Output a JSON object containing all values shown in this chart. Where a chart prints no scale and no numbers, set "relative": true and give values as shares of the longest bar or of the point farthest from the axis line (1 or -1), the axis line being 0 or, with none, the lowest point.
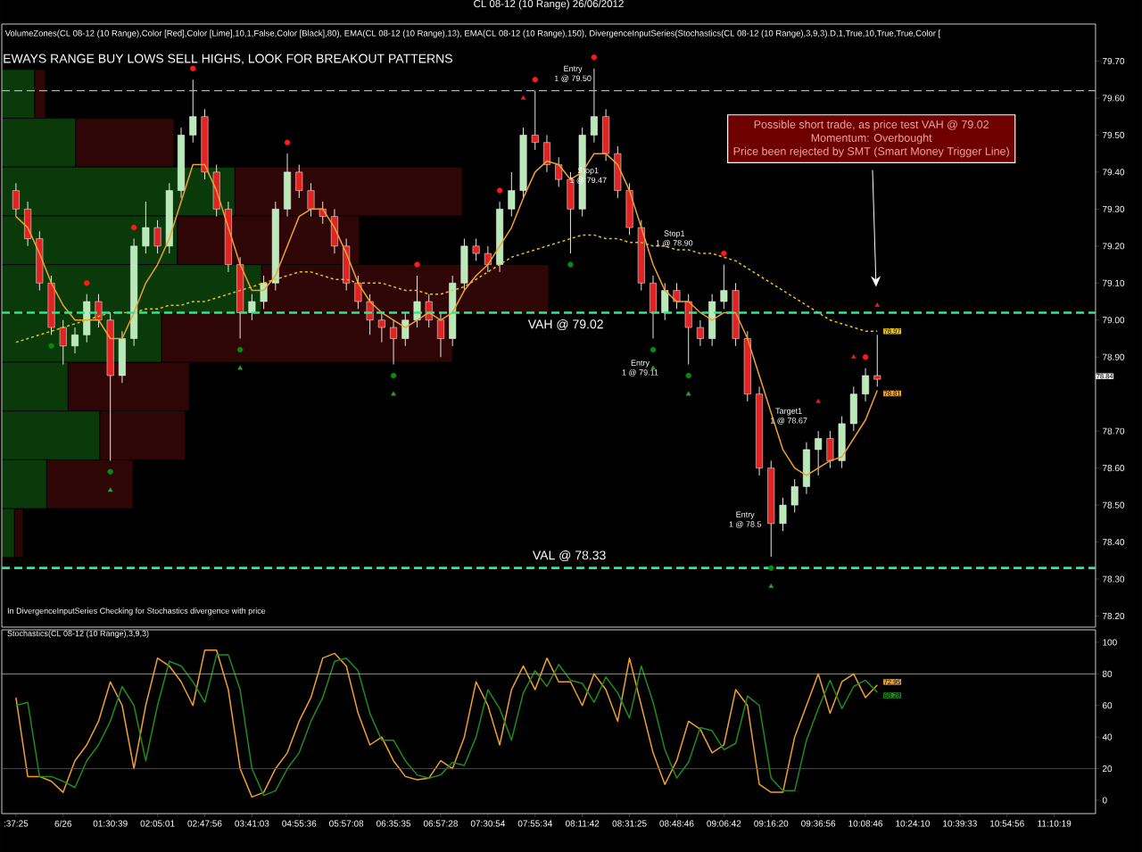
{
  "chart_data": [
    {
      "type": "candlestick",
      "title": "CL 08-12 (10 Range)  26/06/2012",
      "categories": [
        null,
        null,
        null,
        null,
        null,
        null,
        null,
        null,
        null,
        null,
        null,
        null,
        null,
        null,
        null,
        null,
        null,
        null,
        null,
        null,
        null,
        null,
        null,
        null,
        null,
        null,
        null,
        null,
        null,
        null,
        null,
        null,
        null,
        null,
        null,
        null,
        null,
        null,
        null,
        null,
        null,
        null,
        null,
        null,
        null,
        null,
        null,
        null,
        null,
        null,
        null,
        null,
        null,
        null,
        null,
        null,
        null,
        null,
        null,
        null,
        null,
        null,
        null,
        null,
        null,
        null,
        null,
        null,
        null,
        null,
        null,
        null,
        null,
        null,
        null,
        null,
        null,
        null,
        null,
        null,
        null,
        null,
        null,
        null,
        null,
        null,
        null,
        null,
        null
      ],
      "ohlc": [
        [
          79.35,
          79.37,
          79.28,
          79.3
        ],
        [
          79.3,
          79.32,
          79.2,
          79.22
        ],
        [
          79.22,
          79.24,
          79.08,
          79.1
        ],
        [
          79.1,
          79.12,
          78.96,
          78.98
        ],
        [
          78.98,
          79.0,
          78.88,
          78.93
        ],
        [
          78.93,
          78.98,
          78.91,
          78.96
        ],
        [
          78.96,
          79.07,
          78.94,
          79.05
        ],
        [
          79.05,
          79.07,
          78.98,
          79.0
        ],
        [
          79.0,
          79.02,
          78.62,
          78.85
        ],
        [
          78.85,
          78.97,
          78.83,
          78.95
        ],
        [
          78.95,
          79.22,
          78.93,
          79.2
        ],
        [
          79.2,
          79.32,
          79.18,
          79.25
        ],
        [
          79.25,
          79.27,
          79.18,
          79.2
        ],
        [
          79.2,
          79.37,
          79.18,
          79.35
        ],
        [
          79.35,
          79.52,
          79.33,
          79.5
        ],
        [
          79.5,
          79.65,
          79.48,
          79.55
        ],
        [
          79.55,
          79.57,
          79.38,
          79.4
        ],
        [
          79.4,
          79.42,
          79.28,
          79.3
        ],
        [
          79.3,
          79.32,
          79.13,
          79.15
        ],
        [
          79.15,
          79.17,
          78.95,
          79.02
        ],
        [
          79.02,
          79.07,
          79.0,
          79.05
        ],
        [
          79.05,
          79.12,
          79.03,
          79.1
        ],
        [
          79.1,
          79.32,
          79.08,
          79.3
        ],
        [
          79.3,
          79.45,
          79.28,
          79.4
        ],
        [
          79.4,
          79.42,
          79.33,
          79.35
        ],
        [
          79.35,
          79.37,
          79.28,
          79.3
        ],
        [
          79.3,
          79.32,
          79.26,
          79.28
        ],
        [
          79.28,
          79.3,
          79.18,
          79.2
        ],
        [
          79.2,
          79.22,
          79.08,
          79.1
        ],
        [
          79.1,
          79.12,
          79.03,
          79.05
        ],
        [
          79.05,
          79.07,
          78.96,
          79.0
        ],
        [
          79.0,
          79.02,
          78.94,
          78.98
        ],
        [
          78.98,
          79.0,
          78.88,
          78.95
        ],
        [
          78.95,
          79.02,
          78.93,
          79.0
        ],
        [
          79.0,
          79.12,
          78.98,
          79.05
        ],
        [
          79.05,
          79.07,
          78.98,
          79.0
        ],
        [
          79.0,
          79.02,
          78.9,
          78.95
        ],
        [
          78.95,
          79.12,
          78.93,
          79.1
        ],
        [
          79.1,
          79.22,
          79.08,
          79.2
        ],
        [
          79.2,
          79.22,
          79.16,
          79.18
        ],
        [
          79.18,
          79.2,
          79.13,
          79.15
        ],
        [
          79.15,
          79.32,
          79.13,
          79.3
        ],
        [
          79.3,
          79.4,
          79.28,
          79.35
        ],
        [
          79.35,
          79.52,
          79.33,
          79.5
        ],
        [
          79.5,
          79.62,
          79.46,
          79.48
        ],
        [
          79.48,
          79.5,
          79.4,
          79.42
        ],
        [
          79.42,
          79.44,
          79.36,
          79.38
        ],
        [
          79.38,
          79.4,
          79.18,
          79.3
        ],
        [
          79.3,
          79.52,
          79.28,
          79.5
        ],
        [
          79.5,
          79.68,
          79.48,
          79.55
        ],
        [
          79.55,
          79.57,
          79.43,
          79.45
        ],
        [
          79.45,
          79.47,
          79.33,
          79.35
        ],
        [
          79.35,
          79.37,
          79.23,
          79.25
        ],
        [
          79.25,
          79.27,
          79.08,
          79.1
        ],
        [
          79.1,
          79.12,
          78.95,
          79.02
        ],
        [
          79.02,
          79.1,
          79.0,
          79.08
        ],
        [
          79.08,
          79.1,
          79.03,
          79.05
        ],
        [
          79.05,
          79.07,
          78.88,
          78.98
        ],
        [
          78.98,
          79.0,
          78.93,
          78.95
        ],
        [
          78.95,
          79.07,
          78.93,
          79.05
        ],
        [
          79.05,
          79.15,
          79.03,
          79.08
        ],
        [
          79.08,
          79.1,
          78.93,
          78.95
        ],
        [
          78.95,
          78.97,
          78.78,
          78.8
        ],
        [
          78.8,
          78.82,
          78.58,
          78.6
        ],
        [
          78.6,
          78.62,
          78.36,
          78.45
        ],
        [
          78.45,
          78.52,
          78.43,
          78.5
        ],
        [
          78.5,
          78.57,
          78.48,
          78.55
        ],
        [
          78.55,
          78.67,
          78.53,
          78.65
        ],
        [
          78.65,
          78.7,
          78.58,
          78.68
        ],
        [
          78.68,
          78.7,
          78.6,
          78.62
        ],
        [
          78.62,
          78.74,
          78.6,
          78.72
        ],
        [
          78.72,
          78.82,
          78.7,
          78.8
        ],
        [
          78.8,
          78.87,
          78.78,
          78.85
        ],
        [
          78.85,
          78.96,
          78.82,
          78.84
        ],
        null,
        null,
        null,
        null,
        null,
        null,
        null,
        null,
        null,
        null,
        null,
        null,
        null,
        null,
        null
      ],
      "colors": [
        "#e02424",
        "#e02424",
        "#e02424",
        "#e02424",
        "#e02424",
        "#b8eab8",
        "#b8eab8",
        "#e02424",
        "#e02424",
        "#b8eab8",
        "#b8eab8",
        "#b8eab8",
        "#e02424",
        "#b8eab8",
        "#b8eab8",
        "#b8eab8",
        "#e02424",
        "#e02424",
        "#e02424",
        "#e02424",
        "#b8eab8",
        "#b8eab8",
        "#b8eab8",
        "#b8eab8",
        "#e02424",
        "#e02424",
        "#e02424",
        "#e02424",
        "#e02424",
        "#e02424",
        "#e02424",
        "#e02424",
        "#e02424",
        "#b8eab8",
        "#b8eab8",
        "#e02424",
        "#e02424",
        "#b8eab8",
        "#b8eab8",
        "#e02424",
        "#e02424",
        "#b8eab8",
        "#b8eab8",
        "#b8eab8",
        "#e02424",
        "#e02424",
        "#e02424",
        "#e02424",
        "#b8eab8",
        "#b8eab8",
        "#e02424",
        "#e02424",
        "#e02424",
        "#e02424",
        "#e02424",
        "#b8eab8",
        "#e02424",
        "#e02424",
        "#e02424",
        "#b8eab8",
        "#b8eab8",
        "#e02424",
        "#e02424",
        "#e02424",
        "#e02424",
        "#b8eab8",
        "#b8eab8",
        "#b8eab8",
        "#b8eab8",
        "#e02424",
        "#b8eab8",
        "#b8eab8",
        "#b8eab8",
        "#e02424",
        null,
        null,
        null,
        null,
        null,
        null,
        null,
        null,
        null,
        null,
        null,
        null,
        null,
        null,
        null
      ],
      "series": [
        {
          "type": "line",
          "color": "#f0a030",
          "line_style": "solid",
          "values": [
            79.28,
            79.25,
            79.18,
            79.1,
            79.04,
            79.0,
            79.0,
            79.0,
            78.95,
            78.95,
            79.02,
            79.1,
            79.15,
            79.22,
            79.32,
            79.42,
            79.42,
            79.35,
            79.25,
            79.15,
            79.08,
            79.08,
            79.12,
            79.2,
            79.28,
            79.3,
            79.3,
            79.25,
            79.18,
            79.1,
            79.05,
            79.02,
            79.0,
            78.98,
            79.0,
            79.02,
            79.0,
            79.02,
            79.08,
            79.12,
            79.15,
            79.2,
            79.25,
            79.33,
            79.4,
            79.43,
            79.42,
            79.38,
            79.4,
            79.45,
            79.45,
            79.42,
            79.35,
            79.25,
            79.15,
            79.08,
            79.05,
            79.05,
            79.02,
            79.0,
            79.02,
            79.02,
            78.95,
            78.85,
            78.75,
            78.65,
            78.6,
            78.58,
            78.6,
            78.62,
            78.63,
            78.68,
            78.73,
            78.81,
            null,
            null,
            null,
            null,
            null,
            null,
            null,
            null,
            null,
            null,
            null,
            null,
            null,
            null,
            null
          ],
          "value_labels": [
            null,
            null,
            null,
            null,
            null,
            null,
            null,
            null,
            null,
            null,
            null,
            null,
            null,
            null,
            null,
            null,
            null,
            null,
            null,
            null,
            null,
            null,
            null,
            null,
            null,
            null,
            null,
            null,
            null,
            null,
            null,
            null,
            null,
            null,
            null,
            null,
            null,
            null,
            null,
            null,
            null,
            null,
            null,
            null,
            null,
            null,
            null,
            null,
            null,
            null,
            null,
            null,
            null,
            null,
            null,
            null,
            null,
            null,
            null,
            null,
            null,
            null,
            null,
            null,
            null,
            null,
            null,
            null,
            null,
            null,
            null,
            null,
            null,
            "78.81",
            null,
            null,
            null,
            null,
            null,
            null,
            null,
            null,
            null,
            null,
            null,
            null,
            null,
            null,
            null
          ]
        },
        {
          "type": "line",
          "color": "#e8c020",
          "line_style": "dashed",
          "values": [
            78.94,
            78.95,
            78.96,
            78.97,
            78.98,
            78.99,
            79.0,
            79.01,
            79.02,
            79.02,
            79.02,
            79.03,
            79.03,
            79.04,
            79.04,
            79.05,
            79.05,
            79.06,
            79.07,
            79.08,
            79.09,
            79.1,
            79.11,
            79.12,
            79.13,
            79.13,
            79.12,
            79.11,
            79.11,
            79.1,
            79.1,
            79.1,
            79.09,
            79.08,
            79.08,
            79.07,
            79.07,
            79.08,
            79.09,
            79.11,
            79.13,
            79.15,
            79.17,
            79.18,
            79.19,
            79.2,
            79.21,
            79.22,
            79.23,
            79.23,
            79.22,
            79.22,
            79.21,
            79.21,
            79.2,
            79.2,
            79.19,
            79.19,
            79.18,
            79.18,
            79.17,
            79.16,
            79.14,
            79.12,
            79.1,
            79.08,
            79.06,
            79.04,
            79.02,
            79.0,
            78.99,
            78.98,
            78.97,
            78.97,
            null,
            null,
            null,
            null,
            null,
            null,
            null,
            null,
            null,
            null,
            null,
            null,
            null,
            null,
            null
          ],
          "value_labels": [
            null,
            null,
            null,
            null,
            null,
            null,
            null,
            null,
            null,
            null,
            null,
            null,
            null,
            null,
            null,
            null,
            null,
            null,
            null,
            null,
            null,
            null,
            null,
            null,
            null,
            null,
            null,
            null,
            null,
            null,
            null,
            null,
            null,
            null,
            null,
            null,
            null,
            null,
            null,
            null,
            null,
            null,
            null,
            null,
            null,
            null,
            null,
            null,
            null,
            null,
            null,
            null,
            null,
            null,
            null,
            null,
            null,
            null,
            null,
            null,
            null,
            null,
            null,
            null,
            null,
            null,
            null,
            null,
            null,
            null,
            null,
            null,
            null,
            "78.97",
            null,
            null,
            null,
            null,
            null,
            null,
            null,
            null,
            null,
            null,
            null,
            null,
            null,
            null,
            null
          ]
        },
        {
          "type": "scatter",
          "color": "#ff1a1a",
          "marker": "circle",
          "values": [
            null,
            null,
            null,
            null,
            null,
            null,
            79.1,
            null,
            null,
            null,
            79.25,
            null,
            null,
            null,
            null,
            79.68,
            null,
            null,
            null,
            null,
            null,
            null,
            null,
            79.48,
            null,
            null,
            null,
            null,
            null,
            null,
            null,
            null,
            null,
            null,
            79.15,
            null,
            null,
            null,
            null,
            null,
            null,
            79.35,
            null,
            null,
            79.65,
            null,
            null,
            null,
            null,
            79.71,
            null,
            null,
            null,
            null,
            null,
            null,
            null,
            null,
            null,
            null,
            79.18,
            null,
            null,
            null,
            null,
            null,
            null,
            null,
            null,
            null,
            null,
            null,
            78.9,
            null,
            null,
            null,
            null,
            null,
            null,
            null,
            null,
            null,
            null,
            null,
            null,
            null,
            null,
            null,
            null
          ]
        },
        {
          "type": "scatter",
          "color": "#0a8a0a",
          "marker": "circle",
          "values": [
            null,
            null,
            null,
            78.93,
            null,
            null,
            null,
            null,
            78.59,
            null,
            null,
            null,
            null,
            null,
            null,
            null,
            null,
            null,
            null,
            78.92,
            null,
            null,
            null,
            null,
            null,
            null,
            null,
            null,
            null,
            null,
            null,
            null,
            78.85,
            null,
            null,
            null,
            null,
            null,
            null,
            null,
            null,
            null,
            null,
            null,
            null,
            null,
            null,
            79.15,
            null,
            null,
            null,
            null,
            null,
            null,
            78.92,
            null,
            null,
            78.85,
            null,
            null,
            null,
            null,
            null,
            null,
            78.33,
            null,
            null,
            null,
            null,
            null,
            null,
            null,
            null,
            null,
            null,
            null,
            null,
            null,
            null,
            null,
            null,
            null,
            null,
            null,
            null,
            null,
            null,
            null,
            null
          ]
        },
        {
          "type": "scatter",
          "color": "#30a030",
          "marker": "triangle",
          "values": [
            null,
            null,
            null,
            null,
            null,
            null,
            null,
            null,
            78.54,
            null,
            null,
            null,
            null,
            null,
            null,
            null,
            null,
            null,
            null,
            78.87,
            null,
            null,
            null,
            null,
            null,
            null,
            null,
            null,
            null,
            null,
            null,
            null,
            78.8,
            null,
            null,
            null,
            null,
            null,
            null,
            null,
            null,
            null,
            null,
            null,
            null,
            null,
            null,
            null,
            null,
            null,
            null,
            null,
            null,
            null,
            78.87,
            null,
            null,
            78.8,
            null,
            null,
            null,
            null,
            null,
            null,
            78.28,
            null,
            null,
            null,
            null,
            null,
            null,
            null,
            null,
            null,
            null,
            null,
            null,
            null,
            null,
            null,
            null,
            null,
            null,
            null,
            null,
            null,
            null,
            null,
            null
          ]
        },
        {
          "type": "scatter",
          "color": "#e02020",
          "marker": "triangle",
          "values": [
            null,
            null,
            null,
            null,
            null,
            null,
            null,
            null,
            null,
            null,
            null,
            null,
            null,
            null,
            null,
            null,
            null,
            null,
            null,
            null,
            null,
            null,
            null,
            null,
            null,
            null,
            null,
            null,
            null,
            null,
            null,
            null,
            null,
            null,
            null,
            null,
            null,
            null,
            null,
            null,
            null,
            null,
            null,
            79.6,
            null,
            null,
            null,
            null,
            null,
            null,
            null,
            null,
            null,
            null,
            null,
            null,
            null,
            null,
            null,
            null,
            null,
            null,
            null,
            null,
            null,
            null,
            null,
            null,
            78.78,
            null,
            null,
            78.9,
            null,
            79.04,
            null,
            null,
            null,
            null,
            null,
            null,
            null,
            null,
            null,
            null,
            null,
            null,
            null,
            null,
            null
          ]
        }
      ],
      "ylim": [
        78.17,
        79.8
      ],
      "yticks": [
        {
          "value": 78.2,
          "label": "78.20"
        },
        {
          "value": 78.3,
          "label": "78.30"
        },
        {
          "value": 78.4,
          "label": "78.40"
        },
        {
          "value": 78.5,
          "label": "78.50"
        },
        {
          "value": 78.6,
          "label": "78.60"
        },
        {
          "value": 78.7,
          "label": "78.70"
        },
        {
          "value": 78.9,
          "label": "78.90"
        },
        {
          "value": 79.0,
          "label": "79.00"
        },
        {
          "value": 79.1,
          "label": "79.10"
        },
        {
          "value": 79.2,
          "label": "79.20"
        },
        {
          "value": 79.3,
          "label": "79.30"
        },
        {
          "value": 79.4,
          "label": "79.40"
        },
        {
          "value": 79.5,
          "label": "79.50"
        },
        {
          "value": 79.6,
          "label": "79.60"
        },
        {
          "value": 79.7,
          "label": "79.70"
        }
      ],
      "tick_labels": "y",
      "ref_lines": [
        {
          "axis": "y",
          "value": 79.62,
          "color": "#9ab8c8",
          "line_style": "dashed"
        },
        {
          "axis": "y",
          "value": 79.02,
          "label": "VAH @ 79.02",
          "color": "#30e890",
          "line_style": "dashed"
        },
        {
          "axis": "y",
          "value": 78.33,
          "label": "VAL @ 78.33",
          "color": "#30e890",
          "line_style": "dashed"
        }
      ],
      "annotations": [
        "VolumeZones(CL 08-12 (10 Range),Color [Red],Color [Lime],10,1,False,Color [Black],80), EMA(CL 08-12 (10 Range),13), EMA(CL 08-12 (10 Range),150), DivergenceInputSeries(Stochastics(CL 08-12 (10 Range),3,9,3).D,1,True,10,True,True,Color [",
        "EWAYS RANGE BUY LOWS SELL HIGHS, LOOK FOR BREAKOUT PATTERNS",
        "Entry",
        "1 @ 79.50",
        "Stop1",
        "1 @ 79.47",
        "Stop1",
        "1 @ 78.90",
        "Entry",
        "1 @ 79.11",
        "Target1",
        "1 @ 78.67",
        "Entry",
        "1 @ 78.5",
        "Possible short trade, as price test VAH @ 79.02",
        "Momentum: Overbought",
        "Price been rejected by SMT (Smart Money Trigger Line)",
        "In DivergenceInputSeries Checking for Stochastics  divergence with price",
        "78.84"
      ]
    },
    {
      "type": "bar",
      "orientation": "horizontal",
      "stacked": true,
      "relative": true,
      "tick_labels": false,
      "categories": [
        null,
        null,
        null,
        null,
        null,
        null,
        null,
        null,
        null,
        null
      ],
      "series": [
        {
          "color": "#0a3a0a",
          "values": [
            0.06,
            0.135,
            0.426,
            0.321,
            0.475,
            0.292,
            0.121,
            0.179,
            0.082,
            0.023
          ]
        },
        {
          "color": "#2e0606",
          "values": [
            0.02,
            0.18,
            0.416,
            0.333,
            0.525,
            0.532,
            0.222,
            0.157,
            0.158,
            0.016
          ]
        }
      ]
    },
    {
      "type": "line",
      "title": "Stochastics(CL 08-12 (10 Range),3,9,3)",
      "categories": [
        ":37:25",
        null,
        null,
        null,
        "6/26",
        null,
        null,
        null,
        "01:30:39",
        null,
        null,
        null,
        "02:05:01",
        null,
        null,
        null,
        "02:47:56",
        null,
        null,
        null,
        "03:41:03",
        null,
        null,
        null,
        "04:55:36",
        null,
        null,
        null,
        "05:57:08",
        null,
        null,
        null,
        "06:35:35",
        null,
        null,
        null,
        "06:57:28",
        null,
        null,
        null,
        "07:30:54",
        null,
        null,
        null,
        "07:55:34",
        null,
        null,
        null,
        "08:11:42",
        null,
        null,
        null,
        "08:31:25",
        null,
        null,
        null,
        "08:48:46",
        null,
        null,
        null,
        "09:06:42",
        null,
        null,
        null,
        "09:16:20",
        null,
        null,
        null,
        "09:36:56",
        null,
        null,
        null,
        "10:08:46",
        null,
        null,
        null,
        "10:24:10",
        null,
        null,
        null,
        "10:39:33",
        null,
        null,
        null,
        "10:54:56",
        null,
        null,
        null,
        "11:10:19"
      ],
      "series": [
        {
          "color": "#f0a030",
          "values": [
            65,
            15,
            15,
            12,
            5,
            25,
            35,
            50,
            75,
            60,
            20,
            60,
            90,
            85,
            75,
            60,
            95,
            95,
            70,
            20,
            2,
            5,
            20,
            30,
            50,
            65,
            90,
            93,
            85,
            55,
            35,
            40,
            25,
            15,
            13,
            14,
            25,
            20,
            40,
            75,
            60,
            35,
            70,
            85,
            70,
            90,
            75,
            75,
            60,
            80,
            70,
            50,
            90,
            60,
            30,
            10,
            25,
            50,
            45,
            30,
            35,
            70,
            60,
            10,
            5,
            5,
            40,
            60,
            80,
            55,
            75,
            80,
            65,
            72.95,
            null,
            null,
            null,
            null,
            null,
            null,
            null,
            null,
            null,
            null,
            null,
            null,
            null,
            null,
            null
          ],
          "value_labels": [
            null,
            null,
            null,
            null,
            null,
            null,
            null,
            null,
            null,
            null,
            null,
            null,
            null,
            null,
            null,
            null,
            null,
            null,
            null,
            null,
            null,
            null,
            null,
            null,
            null,
            null,
            null,
            null,
            null,
            null,
            null,
            null,
            null,
            null,
            null,
            null,
            null,
            null,
            null,
            null,
            null,
            null,
            null,
            null,
            null,
            null,
            null,
            null,
            null,
            null,
            null,
            null,
            null,
            null,
            null,
            null,
            null,
            null,
            null,
            null,
            null,
            null,
            null,
            null,
            null,
            null,
            null,
            null,
            null,
            null,
            null,
            null,
            null,
            "72.95",
            null,
            null,
            null,
            null,
            null,
            null,
            null,
            null,
            null,
            null,
            null,
            null,
            null,
            null,
            null
          ]
        },
        {
          "color": "#208a20",
          "values": [
            60,
            62,
            15,
            15,
            12,
            8,
            25,
            35,
            50,
            72,
            60,
            25,
            60,
            88,
            85,
            75,
            62,
            92,
            92,
            70,
            20,
            3,
            6,
            20,
            30,
            50,
            65,
            88,
            90,
            82,
            55,
            38,
            38,
            25,
            16,
            14,
            16,
            24,
            22,
            40,
            70,
            58,
            38,
            68,
            82,
            72,
            86,
            76,
            74,
            62,
            78,
            68,
            52,
            85,
            62,
            32,
            14,
            24,
            46,
            44,
            32,
            36,
            66,
            60,
            14,
            6,
            6,
            38,
            58,
            76,
            58,
            72,
            76,
            68.28,
            null,
            null,
            null,
            null,
            null,
            null,
            null,
            null,
            null,
            null,
            null,
            null,
            null,
            null,
            null
          ],
          "value_labels": [
            null,
            null,
            null,
            null,
            null,
            null,
            null,
            null,
            null,
            null,
            null,
            null,
            null,
            null,
            null,
            null,
            null,
            null,
            null,
            null,
            null,
            null,
            null,
            null,
            null,
            null,
            null,
            null,
            null,
            null,
            null,
            null,
            null,
            null,
            null,
            null,
            null,
            null,
            null,
            null,
            null,
            null,
            null,
            null,
            null,
            null,
            null,
            null,
            null,
            null,
            null,
            null,
            null,
            null,
            null,
            null,
            null,
            null,
            null,
            null,
            null,
            null,
            null,
            null,
            null,
            null,
            null,
            null,
            null,
            null,
            null,
            null,
            null,
            "68.28",
            null,
            null,
            null,
            null,
            null,
            null,
            null,
            null,
            null,
            null,
            null,
            null,
            null,
            null,
            null
          ]
        }
      ],
      "ylim": [
        -8.5,
        107.9
      ],
      "yticks": [
        0,
        20,
        40,
        60,
        80,
        100
      ],
      "ref_lines": [
        {
          "axis": "y",
          "value": 80,
          "color": "#b8c060",
          "line_style": "solid"
        },
        {
          "axis": "y",
          "value": 20,
          "color": "#8a2be2",
          "line_style": "solid"
        }
      ]
    }
  ]
}
